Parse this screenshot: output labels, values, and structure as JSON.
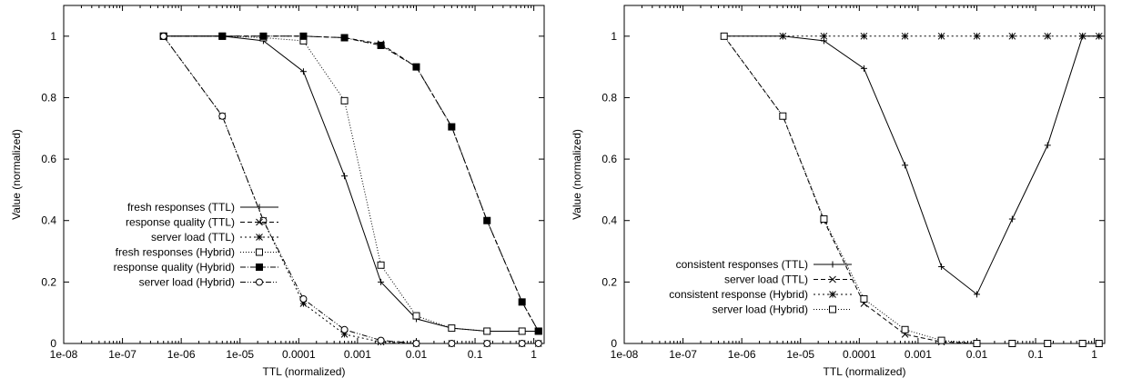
{
  "chart_data": [
    {
      "type": "line",
      "xscale": "log",
      "xlim": [
        1e-08,
        1.5
      ],
      "ylim": [
        0,
        1.1
      ],
      "xlabel": "TTL (normalized)",
      "ylabel": "Value (normalized)",
      "xticks": [
        "1e-08",
        "1e-07",
        "1e-06",
        "1e-05",
        "0.0001",
        "0.001",
        "0.01",
        "0.1",
        "1"
      ],
      "yticks": [
        "0",
        "0.2",
        "0.4",
        "0.6",
        "0.8",
        "1"
      ],
      "legend_position": "left",
      "x": [
        5e-07,
        5e-06,
        2.5e-05,
        0.00012,
        0.0006,
        0.0025,
        0.01,
        0.04,
        0.16,
        0.63,
        1.2
      ],
      "series": [
        {
          "name": "fresh responses (TTL)",
          "marker": "plus",
          "dash": "solid",
          "values": [
            1.0,
            1.0,
            0.985,
            0.885,
            0.545,
            0.2,
            0.08,
            0.05,
            0.04,
            0.04,
            0.04
          ]
        },
        {
          "name": "response quality (TTL)",
          "marker": "cross",
          "dash": "dashed",
          "values": [
            1.0,
            1.0,
            1.0,
            1.0,
            0.995,
            0.975,
            0.9,
            0.705,
            0.4,
            0.135,
            0.04
          ]
        },
        {
          "name": "server load (TTL)",
          "marker": "star",
          "dash": "dotted",
          "values": [
            1.0,
            0.74,
            0.4,
            0.13,
            0.03,
            0.005,
            0.0,
            0.0,
            0.0,
            0.0,
            0.0
          ]
        },
        {
          "name": "fresh responses (Hybrid)",
          "marker": "open-square",
          "dash": "finedot",
          "values": [
            1.0,
            1.0,
            0.995,
            0.985,
            0.79,
            0.255,
            0.09,
            0.05,
            0.04,
            0.04,
            0.04
          ]
        },
        {
          "name": "response quality (Hybrid)",
          "marker": "filled-square",
          "dash": "dashdot",
          "values": [
            1.0,
            1.0,
            1.0,
            1.0,
            0.995,
            0.97,
            0.9,
            0.705,
            0.4,
            0.135,
            0.04
          ]
        },
        {
          "name": "server load (Hybrid)",
          "marker": "open-circle",
          "dash": "dashdotdot",
          "values": [
            1.0,
            0.74,
            0.4,
            0.145,
            0.045,
            0.01,
            0.0,
            0.0,
            0.0,
            0.0,
            0.0
          ]
        }
      ]
    },
    {
      "type": "line",
      "xscale": "log",
      "xlim": [
        1e-08,
        1.5
      ],
      "ylim": [
        0,
        1.1
      ],
      "xlabel": "TTL (normalized)",
      "ylabel": "Value (normalized)",
      "xticks": [
        "1e-08",
        "1e-07",
        "1e-06",
        "1e-05",
        "0.0001",
        "0.001",
        "0.01",
        "0.1",
        "1"
      ],
      "yticks": [
        "0",
        "0.2",
        "0.4",
        "0.6",
        "0.8",
        "1"
      ],
      "legend_position": "bottom-left",
      "x": [
        5e-07,
        5e-06,
        2.5e-05,
        0.00012,
        0.0006,
        0.0025,
        0.01,
        0.04,
        0.16,
        0.63,
        1.2
      ],
      "series": [
        {
          "name": "consistent responses (TTL)",
          "marker": "plus",
          "dash": "solid",
          "values": [
            1.0,
            1.0,
            0.985,
            0.895,
            0.58,
            0.25,
            0.16,
            0.405,
            0.645,
            1.0,
            1.0
          ]
        },
        {
          "name": "server load (TTL)",
          "marker": "cross",
          "dash": "dashed",
          "values": [
            1.0,
            0.74,
            0.4,
            0.13,
            0.03,
            0.005,
            0.0,
            0.0,
            0.0,
            0.0,
            0.0
          ]
        },
        {
          "name": "consistent response (Hybrid)",
          "marker": "star",
          "dash": "dotted",
          "values": [
            1.0,
            1.0,
            1.0,
            1.0,
            1.0,
            1.0,
            1.0,
            1.0,
            1.0,
            1.0,
            1.0
          ]
        },
        {
          "name": "server load (Hybrid)",
          "marker": "open-square",
          "dash": "finedot",
          "values": [
            1.0,
            0.74,
            0.405,
            0.145,
            0.045,
            0.01,
            0.0,
            0.0,
            0.0,
            0.0,
            0.0
          ]
        }
      ]
    }
  ]
}
